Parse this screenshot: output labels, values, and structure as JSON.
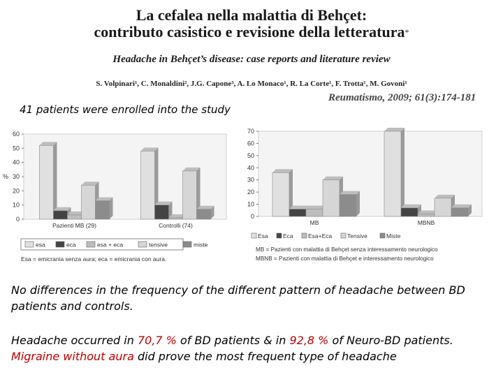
{
  "header": {
    "title_line1": "La cefalea nella malattia di Behçet:",
    "title_line2": "contributo casistico e revisione della letteratura",
    "title_mark": "*",
    "subtitle": "Headache in Behçet’s disease: case reports and literature review",
    "authors": "S. Volpinari¹, C. Monaldini², J.G. Capone³, A. Lo Monaco¹, R. La Corte¹, F. Trotta¹, M. Govoni¹",
    "journal": "Reumatismo, 2009; 61(3):174-181"
  },
  "intro_text": "41 patients were enrolled into the study",
  "chart_data": [
    {
      "type": "bar",
      "ylabel": "%",
      "ylim": [
        0,
        60
      ],
      "yticks": [
        "0",
        "10",
        "20",
        "30",
        "40",
        "50",
        "60"
      ],
      "categories": [
        "Pazienti MB (29)",
        "Controlli (74)"
      ],
      "series": [
        {
          "name": "esa",
          "values": [
            52,
            48
          ],
          "color": "#e0e0e0"
        },
        {
          "name": "eca",
          "values": [
            6,
            10
          ],
          "color": "#444444"
        },
        {
          "name": "esa + eca",
          "values": [
            3,
            1
          ],
          "color": "#bdbdbd"
        },
        {
          "name": "tensive",
          "values": [
            24,
            34
          ],
          "color": "#d6d6d6"
        },
        {
          "name": "miste",
          "values": [
            13,
            7
          ],
          "color": "#8c8c8c"
        }
      ],
      "legend_labels": [
        "esa",
        "eca",
        "esa + eca",
        "tensive",
        "miste"
      ],
      "note": "Esa = emicrania senza aura; eca = emicrania con aura."
    },
    {
      "type": "bar",
      "ylim": [
        0,
        70
      ],
      "yticks": [
        "0",
        "10",
        "20",
        "30",
        "40",
        "50",
        "60",
        "70"
      ],
      "categories": [
        "MB",
        "MBNB"
      ],
      "series": [
        {
          "name": "Esa",
          "values": [
            36,
            70
          ],
          "color": "#e0e0e0"
        },
        {
          "name": "Eca",
          "values": [
            6,
            7
          ],
          "color": "#444444"
        },
        {
          "name": "Esa+Eca",
          "values": [
            6,
            2
          ],
          "color": "#bdbdbd"
        },
        {
          "name": "Tensive",
          "values": [
            30,
            15
          ],
          "color": "#d6d6d6"
        },
        {
          "name": "Miste",
          "values": [
            18,
            7
          ],
          "color": "#8c8c8c"
        }
      ],
      "legend_labels": [
        "Esa",
        "Eca",
        "Esa+Eca",
        "Tensive",
        "Miste"
      ],
      "note_line1": "MB = Pazienti con malattia di Behçet senza interessamento neurologico",
      "note_line2": "MBNB = Pazienti con malattia di Behçet e interessamento neurologico"
    }
  ],
  "findings": {
    "line1": "No differences in the frequency of the different pattern of headache between BD patients and controls.",
    "p2_a": "Headache occurred in ",
    "p2_pct1": "70,7 %",
    "p2_b": " of BD patients & in ",
    "p2_pct2": "92,8 %",
    "p2_c": " of Neuro-BD patients.",
    "p2_red": "Migraine without aura",
    "p2_d": " did prove the most frequent type of headache"
  },
  "colors": {
    "accent_red": "#c00000"
  }
}
